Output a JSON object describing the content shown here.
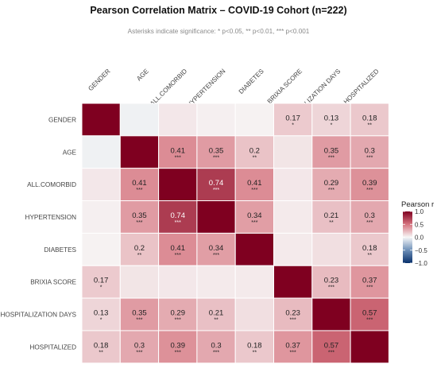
{
  "chart_data": {
    "type": "heatmap",
    "title": "Pearson Correlation Matrix – COVID-19 Cohort (n=222)",
    "subtitle": "Asterisks indicate significance: * p<0.05, ** p<0.01, *** p<0.001",
    "variables": [
      "GENDER",
      "AGE",
      "ALL.COMORBID",
      "HYPERTENSION",
      "DIABETES",
      "BRIXIA SCORE",
      "HOSPITALIZATION DAYS",
      "HOSPITALIZED"
    ],
    "matrix": [
      [
        1.0,
        -0.03,
        0.06,
        0.03,
        0.02,
        0.17,
        0.13,
        0.18
      ],
      [
        -0.03,
        1.0,
        0.41,
        0.35,
        0.2,
        0.07,
        0.35,
        0.3
      ],
      [
        0.06,
        0.41,
        1.0,
        0.74,
        0.41,
        0.06,
        0.29,
        0.39
      ],
      [
        0.03,
        0.35,
        0.74,
        1.0,
        0.34,
        0.05,
        0.21,
        0.3
      ],
      [
        0.02,
        0.2,
        0.41,
        0.34,
        1.0,
        0.05,
        0.09,
        0.18
      ],
      [
        0.17,
        0.07,
        0.06,
        0.05,
        0.05,
        1.0,
        0.23,
        0.37
      ],
      [
        0.13,
        0.35,
        0.29,
        0.21,
        0.09,
        0.23,
        1.0,
        0.57
      ],
      [
        0.18,
        0.3,
        0.39,
        0.3,
        0.18,
        0.37,
        0.57,
        1.0
      ]
    ],
    "cell_labels": [
      [
        null,
        null,
        null,
        null,
        null,
        {
          "r": "0.17",
          "stars": "*"
        },
        {
          "r": "0.13",
          "stars": "*"
        },
        {
          "r": "0.18",
          "stars": "**"
        }
      ],
      [
        null,
        null,
        {
          "r": "0.41",
          "stars": "***"
        },
        {
          "r": "0.35",
          "stars": "***"
        },
        {
          "r": "0.2",
          "stars": "**"
        },
        null,
        {
          "r": "0.35",
          "stars": "***"
        },
        {
          "r": "0.3",
          "stars": "***"
        }
      ],
      [
        null,
        {
          "r": "0.41",
          "stars": "***"
        },
        null,
        {
          "r": "0.74",
          "stars": "***"
        },
        {
          "r": "0.41",
          "stars": "***"
        },
        null,
        {
          "r": "0.29",
          "stars": "***"
        },
        {
          "r": "0.39",
          "stars": "***"
        }
      ],
      [
        null,
        {
          "r": "0.35",
          "stars": "***"
        },
        {
          "r": "0.74",
          "stars": "***"
        },
        null,
        {
          "r": "0.34",
          "stars": "***"
        },
        null,
        {
          "r": "0.21",
          "stars": "**"
        },
        {
          "r": "0.3",
          "stars": "***"
        }
      ],
      [
        null,
        {
          "r": "0.2",
          "stars": "**"
        },
        {
          "r": "0.41",
          "stars": "***"
        },
        {
          "r": "0.34",
          "stars": "***"
        },
        null,
        null,
        null,
        {
          "r": "0.18",
          "stars": "**"
        }
      ],
      [
        {
          "r": "0.17",
          "stars": "*"
        },
        null,
        null,
        null,
        null,
        null,
        {
          "r": "0.23",
          "stars": "***"
        },
        {
          "r": "0.37",
          "stars": "***"
        }
      ],
      [
        {
          "r": "0.13",
          "stars": "*"
        },
        {
          "r": "0.35",
          "stars": "***"
        },
        {
          "r": "0.29",
          "stars": "***"
        },
        {
          "r": "0.21",
          "stars": "**"
        },
        null,
        {
          "r": "0.23",
          "stars": "***"
        },
        null,
        {
          "r": "0.57",
          "stars": "***"
        }
      ],
      [
        {
          "r": "0.18",
          "stars": "**"
        },
        {
          "r": "0.3",
          "stars": "***"
        },
        {
          "r": "0.39",
          "stars": "***"
        },
        {
          "r": "0.3",
          "stars": "***"
        },
        {
          "r": "0.18",
          "stars": "**"
        },
        {
          "r": "0.37",
          "stars": "***"
        },
        {
          "r": "0.57",
          "stars": "***"
        },
        null
      ]
    ],
    "legend": {
      "title": "Pearson r",
      "ticks": [
        1.0,
        0.5,
        0.0,
        -0.5,
        -1.0
      ],
      "tick_labels": [
        "1.0",
        "0.5",
        "0.0",
        "−0.5",
        "−1.0"
      ],
      "range": [
        -1,
        1
      ],
      "placement": "right"
    },
    "colors": {
      "high": "#7f0020",
      "mid": "#f7f7f7",
      "low": "#08306b",
      "cell_border": "#ffffff",
      "text_dark": "#222222",
      "text_light": "#ffffff"
    }
  }
}
